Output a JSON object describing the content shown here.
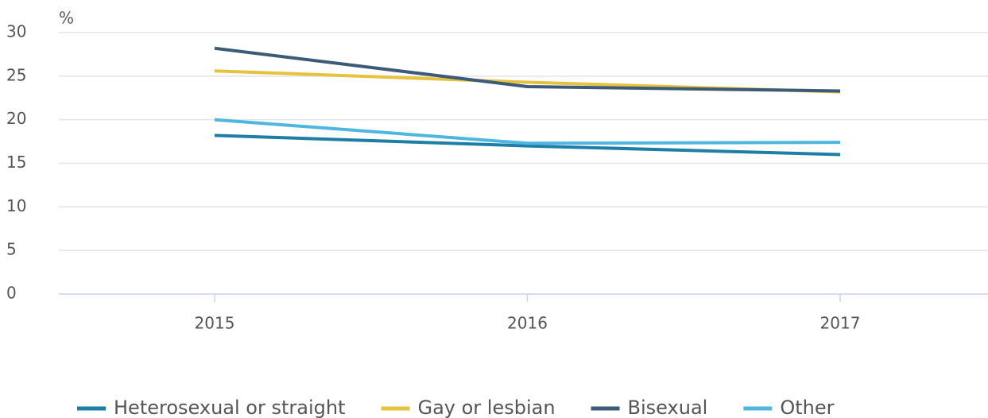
{
  "chart_data": {
    "type": "line",
    "ylabel": "%",
    "categories": [
      "2015",
      "2016",
      "2017"
    ],
    "series": [
      {
        "name": "Heterosexual or straight",
        "color": "#1f7ea6",
        "values": [
          18.2,
          17.0,
          16.0
        ]
      },
      {
        "name": "Gay or lesbian",
        "color": "#e6c23e",
        "values": [
          25.6,
          24.3,
          23.2
        ]
      },
      {
        "name": "Bisexual",
        "color": "#3b5b78",
        "values": [
          28.2,
          23.8,
          23.3
        ]
      },
      {
        "name": "Other",
        "color": "#4fb6df",
        "values": [
          20.0,
          17.3,
          17.4
        ]
      }
    ],
    "ylim": [
      0,
      30
    ],
    "yticks": [
      0,
      5,
      10,
      15,
      20,
      25,
      30
    ],
    "grid": true
  }
}
